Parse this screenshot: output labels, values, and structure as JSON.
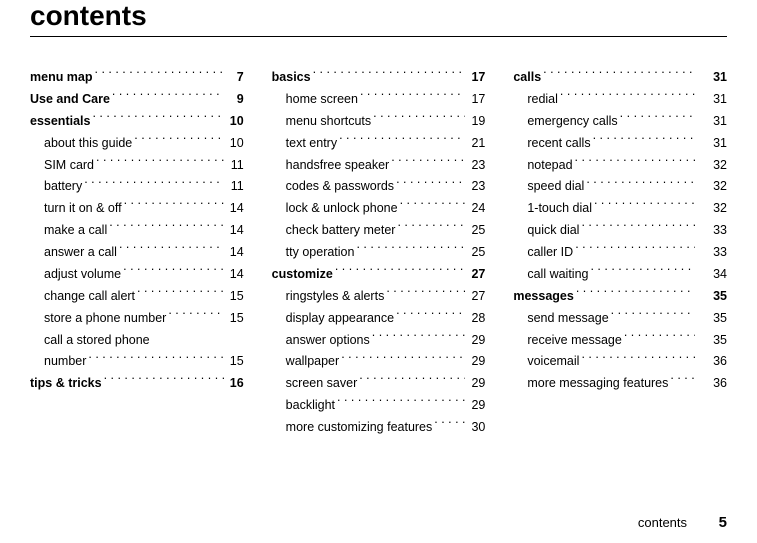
{
  "title": "contents",
  "footer": {
    "label": "contents",
    "page": "5"
  },
  "columns": [
    [
      {
        "type": "section",
        "label": "menu map",
        "page": "7"
      },
      {
        "type": "section",
        "label": "Use and Care",
        "page": "9"
      },
      {
        "type": "section",
        "label": "essentials",
        "page": "10"
      },
      {
        "type": "sub",
        "label": "about this guide",
        "page": "10"
      },
      {
        "type": "sub",
        "label": "SIM card",
        "page": "11"
      },
      {
        "type": "sub",
        "label": "battery",
        "page": "11"
      },
      {
        "type": "sub",
        "label": "turn it on & off",
        "page": "14"
      },
      {
        "type": "sub",
        "label": "make a call",
        "page": "14"
      },
      {
        "type": "sub",
        "label": "answer a call",
        "page": "14"
      },
      {
        "type": "sub",
        "label": "adjust volume",
        "page": "14"
      },
      {
        "type": "sub",
        "label": "change call alert",
        "page": "15"
      },
      {
        "type": "sub",
        "label": "store a phone number",
        "page": "15"
      },
      {
        "type": "sub",
        "label": "call a stored phone",
        "page": ""
      },
      {
        "type": "sub",
        "label": "number",
        "page": "15"
      },
      {
        "type": "section",
        "label": "tips & tricks",
        "page": "16"
      }
    ],
    [
      {
        "type": "section",
        "label": "basics",
        "page": "17"
      },
      {
        "type": "sub",
        "label": "home screen",
        "page": "17"
      },
      {
        "type": "sub",
        "label": "menu shortcuts",
        "page": "19"
      },
      {
        "type": "sub",
        "label": "text entry",
        "page": "21"
      },
      {
        "type": "sub",
        "label": "handsfree speaker",
        "page": "23"
      },
      {
        "type": "sub",
        "label": "codes & passwords",
        "page": "23"
      },
      {
        "type": "sub",
        "label": "lock & unlock phone",
        "page": "24"
      },
      {
        "type": "sub",
        "label": "check battery meter",
        "page": "25"
      },
      {
        "type": "sub",
        "label": "tty operation",
        "page": "25"
      },
      {
        "type": "section",
        "label": "customize",
        "page": "27"
      },
      {
        "type": "sub",
        "label": "ringstyles & alerts",
        "page": "27"
      },
      {
        "type": "sub",
        "label": "display appearance",
        "page": "28"
      },
      {
        "type": "sub",
        "label": "answer options",
        "page": "29"
      },
      {
        "type": "sub",
        "label": "wallpaper",
        "page": "29"
      },
      {
        "type": "sub",
        "label": "screen saver",
        "page": "29"
      },
      {
        "type": "sub",
        "label": "backlight",
        "page": "29"
      },
      {
        "type": "sub",
        "label": "more customizing features",
        "page": "30"
      }
    ],
    [
      {
        "type": "section",
        "label": "calls",
        "page": "31"
      },
      {
        "type": "sub",
        "label": "redial",
        "page": "31"
      },
      {
        "type": "sub",
        "label": "emergency calls",
        "page": "31"
      },
      {
        "type": "sub",
        "label": "recent calls",
        "page": "31"
      },
      {
        "type": "sub",
        "label": "notepad",
        "page": "32"
      },
      {
        "type": "sub",
        "label": "speed dial",
        "page": "32"
      },
      {
        "type": "sub",
        "label": "1-touch dial",
        "page": "32"
      },
      {
        "type": "sub",
        "label": "quick dial",
        "page": "33"
      },
      {
        "type": "sub",
        "label": "caller ID",
        "page": "33"
      },
      {
        "type": "sub",
        "label": "call waiting",
        "page": "34"
      },
      {
        "type": "section",
        "label": "messages",
        "page": "35"
      },
      {
        "type": "sub",
        "label": "send message",
        "page": "35"
      },
      {
        "type": "sub",
        "label": "receive message",
        "page": "35"
      },
      {
        "type": "sub",
        "label": "voicemail",
        "page": "36"
      },
      {
        "type": "sub",
        "label": "more messaging features",
        "page": "36"
      }
    ]
  ]
}
